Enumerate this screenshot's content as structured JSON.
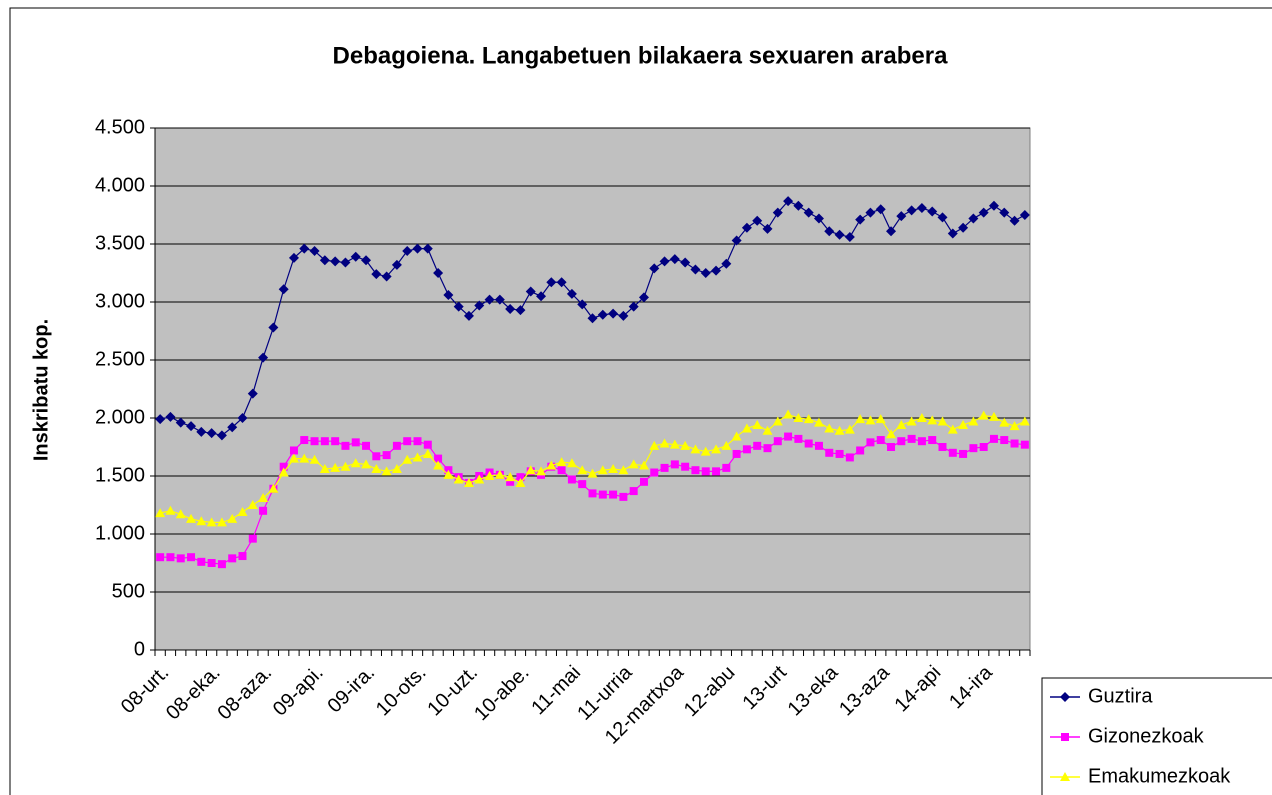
{
  "chart_data": {
    "type": "line",
    "title": "Debagoiena. Langabetuen bilakaera sexuaren arabera",
    "y_label": "Inskribatu kop.",
    "categories": [
      "08-urt.",
      null,
      null,
      null,
      null,
      "08-eka.",
      null,
      null,
      null,
      null,
      "08-aza.",
      null,
      null,
      null,
      null,
      "09-api.",
      null,
      null,
      null,
      null,
      "09-ira.",
      null,
      null,
      null,
      null,
      "10-ots.",
      null,
      null,
      null,
      null,
      "10-uzt.",
      null,
      null,
      null,
      null,
      "10-abe.",
      null,
      null,
      null,
      null,
      "11-mai",
      null,
      null,
      null,
      null,
      "11-urria",
      null,
      null,
      null,
      null,
      "12-martxoa",
      null,
      null,
      null,
      null,
      "12-abu",
      null,
      null,
      null,
      null,
      "13-urt",
      null,
      null,
      null,
      null,
      "13-eka",
      null,
      null,
      null,
      null,
      "13-aza",
      null,
      null,
      null,
      null,
      "14-api",
      null,
      null,
      null,
      null,
      "14-ira",
      null,
      null,
      null,
      null
    ],
    "series": [
      {
        "name": "Guztira",
        "color": "#000080",
        "marker": "diamond",
        "values": [
          1990,
          2010,
          1960,
          1930,
          1880,
          1870,
          1850,
          1920,
          2000,
          2210,
          2520,
          2780,
          3110,
          3380,
          3460,
          3440,
          3360,
          3350,
          3340,
          3390,
          3360,
          3240,
          3220,
          3320,
          3440,
          3460,
          3460,
          3250,
          3060,
          2960,
          2880,
          2970,
          3020,
          3020,
          2940,
          2930,
          3090,
          3050,
          3170,
          3170,
          3070,
          2980,
          2860,
          2890,
          2900,
          2880,
          2960,
          3040,
          3290,
          3350,
          3370,
          3340,
          3280,
          3250,
          3270,
          3330,
          3530,
          3640,
          3700,
          3630,
          3770,
          3870,
          3830,
          3770,
          3720,
          3610,
          3580,
          3560,
          3710,
          3770,
          3800,
          3610,
          3740,
          3790,
          3810,
          3780,
          3730,
          3590,
          3640,
          3720,
          3770,
          3830,
          3770,
          3700,
          3750
        ]
      },
      {
        "name": "Gizonezkoak",
        "color": "#ff00ff",
        "marker": "square",
        "values": [
          800,
          800,
          790,
          800,
          760,
          750,
          740,
          790,
          810,
          960,
          1200,
          1390,
          1580,
          1720,
          1810,
          1800,
          1800,
          1800,
          1760,
          1790,
          1760,
          1670,
          1680,
          1760,
          1800,
          1800,
          1770,
          1650,
          1550,
          1490,
          1440,
          1500,
          1530,
          1510,
          1450,
          1490,
          1540,
          1510,
          1580,
          1550,
          1470,
          1430,
          1350,
          1340,
          1340,
          1320,
          1370,
          1450,
          1530,
          1570,
          1600,
          1580,
          1550,
          1540,
          1540,
          1570,
          1690,
          1730,
          1760,
          1740,
          1800,
          1840,
          1820,
          1780,
          1760,
          1700,
          1690,
          1660,
          1720,
          1790,
          1810,
          1750,
          1800,
          1820,
          1800,
          1810,
          1750,
          1700,
          1690,
          1740,
          1750,
          1820,
          1810,
          1780,
          1770
        ]
      },
      {
        "name": "Emakumezkoak",
        "color": "#ffff00",
        "marker": "triangle",
        "values": [
          1180,
          1200,
          1170,
          1130,
          1110,
          1100,
          1100,
          1130,
          1190,
          1250,
          1310,
          1390,
          1530,
          1650,
          1650,
          1640,
          1560,
          1570,
          1580,
          1610,
          1600,
          1560,
          1540,
          1560,
          1640,
          1660,
          1690,
          1590,
          1510,
          1470,
          1440,
          1470,
          1500,
          1510,
          1490,
          1440,
          1550,
          1540,
          1590,
          1620,
          1610,
          1550,
          1520,
          1550,
          1560,
          1550,
          1600,
          1590,
          1760,
          1780,
          1770,
          1760,
          1730,
          1710,
          1730,
          1760,
          1840,
          1910,
          1940,
          1890,
          1970,
          2030,
          2000,
          1990,
          1960,
          1910,
          1890,
          1900,
          1990,
          1980,
          1990,
          1860,
          1940,
          1970,
          2000,
          1980,
          1970,
          1900,
          1940,
          1970,
          2020,
          2010,
          1960,
          1930,
          1970
        ]
      }
    ],
    "ylim": [
      0,
      4500
    ],
    "yticks": [
      0,
      500,
      {
        "value": 1000,
        "label": "1.000"
      },
      {
        "value": 1500,
        "label": "1.500"
      },
      {
        "value": 2000,
        "label": "2.000"
      },
      {
        "value": 2500,
        "label": "2.500"
      },
      {
        "value": 3000,
        "label": "3.000"
      },
      {
        "value": 3500,
        "label": "3.500"
      },
      {
        "value": 4000,
        "label": "4.000"
      },
      {
        "value": 4500,
        "label": "4.500"
      }
    ],
    "grid": true,
    "legend": "bottom-right",
    "plot_background": "#c0c0c0"
  }
}
